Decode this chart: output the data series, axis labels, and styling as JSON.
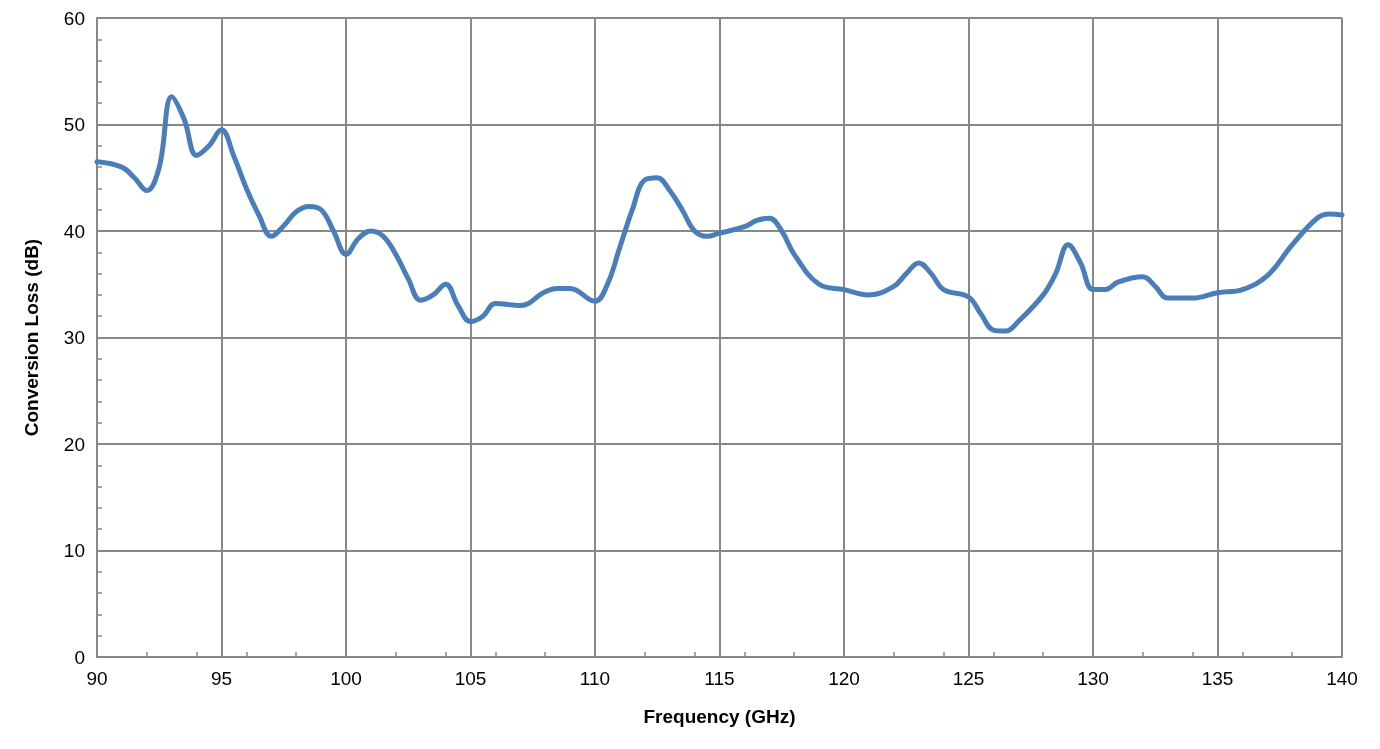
{
  "chart_data": {
    "type": "line",
    "xlabel": "Frequency (GHz)",
    "ylabel": "Conversion Loss (dB)",
    "xlim": [
      90,
      140
    ],
    "xticks": [
      90,
      95,
      100,
      105,
      110,
      115,
      120,
      125,
      130,
      135,
      140
    ],
    "ylim": [
      0,
      60
    ],
    "yticks": [
      0,
      10,
      20,
      30,
      40,
      50,
      60
    ],
    "grid": true,
    "marker": "none",
    "line_style": "solid",
    "series": [
      {
        "color": "#4a7ebb",
        "x": [
          90,
          91,
          91.5,
          92,
          92.5,
          93,
          93.5,
          94,
          94.5,
          95,
          95.5,
          96,
          96.5,
          97,
          97.5,
          98,
          98.5,
          99,
          99.5,
          100,
          100.5,
          101,
          101.5,
          102,
          102.5,
          103,
          103.5,
          104,
          104.5,
          105,
          105.5,
          106,
          107,
          108,
          108.5,
          109,
          110,
          110.5,
          111,
          111.5,
          112,
          112.5,
          113,
          113.5,
          114,
          114.5,
          115,
          116,
          116.5,
          117,
          117.5,
          118,
          119,
          120,
          121,
          122,
          122.5,
          123,
          123.5,
          124,
          125,
          125.5,
          126,
          126.5,
          127,
          128,
          128.5,
          129,
          129.5,
          130,
          130.5,
          131,
          132,
          132.5,
          133,
          134,
          135,
          136,
          137,
          138,
          139,
          139.5,
          140
        ],
        "values": [
          46.5,
          46,
          45,
          43.8,
          46,
          52.6,
          50.5,
          47.1,
          48,
          49.5,
          47,
          44,
          41.5,
          39.5,
          40.5,
          41.8,
          42.3,
          42,
          40,
          37.8,
          39.3,
          40,
          39.5,
          37.8,
          35.5,
          33.5,
          34,
          35,
          33,
          31.5,
          32,
          33.2,
          33,
          34.3,
          34.6,
          34.6,
          33.4,
          35,
          38.5,
          42,
          44.8,
          45,
          43.8,
          42,
          40,
          39.5,
          39.8,
          40.4,
          41,
          41.2,
          40,
          37.8,
          35,
          34.5,
          34,
          34.8,
          36,
          37,
          36,
          34.5,
          33.8,
          32.2,
          30.7,
          30.6,
          31.5,
          34,
          36,
          38.7,
          37,
          34.5,
          34.5,
          35.2,
          35.7,
          34.8,
          33.7,
          33.7,
          34.2,
          34.5,
          35.8,
          38.7,
          41.2,
          41.6,
          41.5
        ]
      }
    ]
  }
}
